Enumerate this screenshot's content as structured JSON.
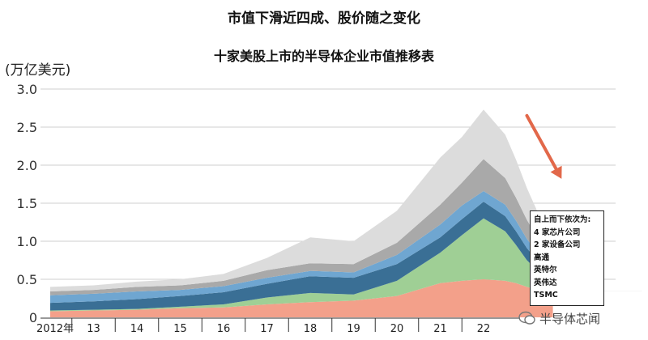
{
  "titles": {
    "main": "市值下滑近四成、股价随之变化",
    "sub": "十家美股上市的半导体企业市值推移表",
    "y_unit": "(万亿美元)"
  },
  "legend": {
    "header": "自上而下依次为:",
    "items": [
      "4 家芯片公司",
      "2 家设备公司",
      "高通",
      "英特尔",
      "英伟达",
      "TSMC"
    ]
  },
  "watermark": {
    "text": "半导体芯闻"
  },
  "colors": {
    "four_chip_companies": "#c8c8c8",
    "two_equipment_companies": "#a9a9a9",
    "qualcomm": "#dcdcdc",
    "intel": "#3a6f95",
    "nvidia": "#6fa6d1",
    "nvidia_green": "#9fcf95",
    "tsmc": "#f3a08a",
    "arrow": "#e2684a"
  },
  "chart_data": {
    "type": "area",
    "stacked": true,
    "x": [
      0,
      1,
      2,
      3,
      4,
      5,
      6,
      7,
      8,
      9,
      9.5,
      10,
      10.5,
      10.75,
      11,
      11.25,
      11.5,
      11.6
    ],
    "x_tick_labels": [
      "2012年",
      "13",
      "14",
      "15",
      "16",
      "17",
      "18",
      "19",
      "20",
      "21",
      "22"
    ],
    "x_tick_positions": [
      0,
      1,
      2,
      3,
      4,
      5,
      6,
      7,
      8,
      9,
      10
    ],
    "y_ticks": [
      "0",
      "0.5",
      "1.0",
      "1.5",
      "2.0",
      "2.5",
      "3.0"
    ],
    "ylim": [
      0,
      3.0
    ],
    "series": [
      {
        "name": "TSMC",
        "color_key": "tsmc",
        "values": [
          0.08,
          0.09,
          0.1,
          0.12,
          0.13,
          0.17,
          0.2,
          0.22,
          0.28,
          0.45,
          0.48,
          0.5,
          0.48,
          0.45,
          0.4,
          0.36,
          0.33,
          0.32
        ]
      },
      {
        "name": "英伟达",
        "color_key": "nvidia_green",
        "values": [
          0.01,
          0.01,
          0.01,
          0.02,
          0.04,
          0.09,
          0.12,
          0.08,
          0.2,
          0.4,
          0.6,
          0.8,
          0.65,
          0.5,
          0.35,
          0.25,
          0.2,
          0.18
        ]
      },
      {
        "name": "英特尔",
        "color_key": "intel",
        "values": [
          0.1,
          0.11,
          0.13,
          0.14,
          0.16,
          0.18,
          0.22,
          0.22,
          0.22,
          0.2,
          0.21,
          0.22,
          0.2,
          0.18,
          0.16,
          0.13,
          0.11,
          0.1
        ]
      },
      {
        "name": "高通",
        "color_key": "nvidia",
        "values": [
          0.1,
          0.1,
          0.1,
          0.08,
          0.08,
          0.08,
          0.07,
          0.07,
          0.12,
          0.17,
          0.18,
          0.14,
          0.15,
          0.14,
          0.12,
          0.1,
          0.08,
          0.08
        ]
      },
      {
        "name": "2 家设备公司",
        "color_key": "two_equipment_companies",
        "values": [
          0.05,
          0.05,
          0.06,
          0.06,
          0.07,
          0.1,
          0.1,
          0.11,
          0.16,
          0.26,
          0.3,
          0.42,
          0.35,
          0.3,
          0.25,
          0.2,
          0.17,
          0.16
        ]
      },
      {
        "name": "4 家芯片公司",
        "color_key": "qualcomm",
        "values": [
          0.06,
          0.06,
          0.07,
          0.08,
          0.09,
          0.16,
          0.34,
          0.3,
          0.42,
          0.62,
          0.6,
          0.65,
          0.57,
          0.5,
          0.42,
          0.34,
          0.29,
          0.28
        ]
      }
    ],
    "annotations": [
      {
        "type": "arrow",
        "from": [
          11.0,
          2.65
        ],
        "to": [
          11.8,
          1.82
        ],
        "color_key": "arrow"
      }
    ],
    "grid": "horizontal",
    "legend_placement": "bottom-right"
  }
}
